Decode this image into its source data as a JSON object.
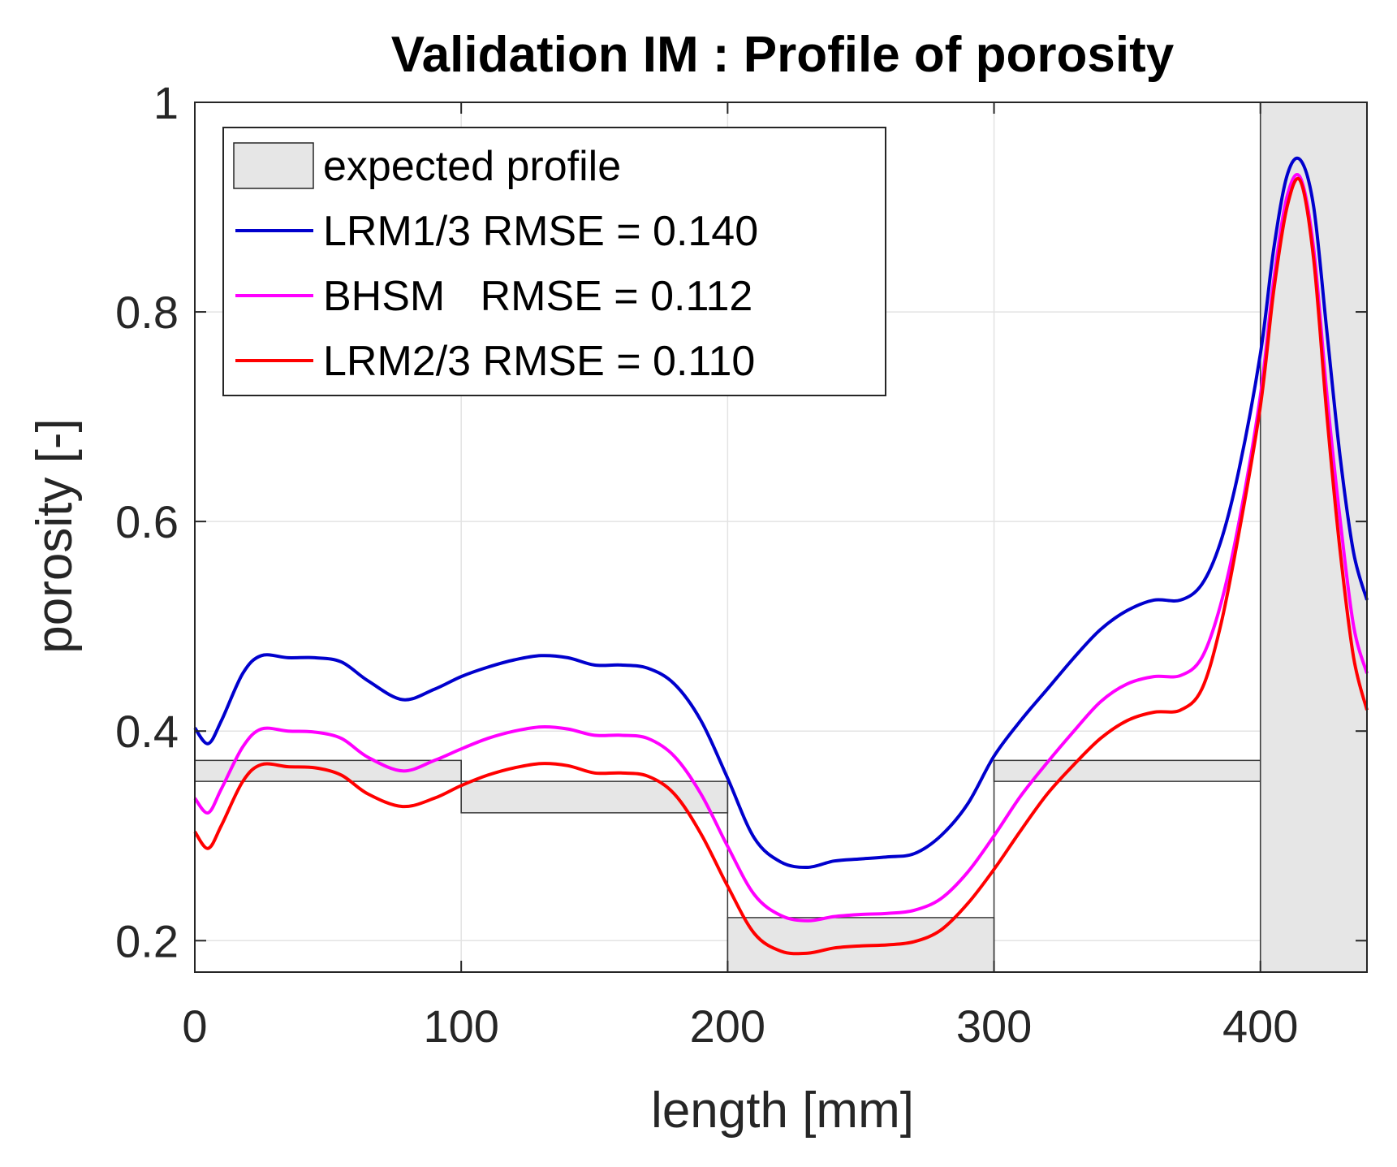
{
  "chart_data": {
    "type": "line",
    "title": "Validation IM : Profile of porosity",
    "xlabel": "length [mm]",
    "ylabel": "porosity [-]",
    "xlim": [
      0,
      440
    ],
    "ylim": [
      0.17,
      1.0
    ],
    "xticks": [
      0,
      100,
      200,
      300,
      400
    ],
    "yticks": [
      0.2,
      0.4,
      0.6,
      0.8,
      1
    ],
    "xtick_labels": [
      "0",
      "100",
      "200",
      "300",
      "400"
    ],
    "ytick_labels": [
      "0.2",
      "0.4",
      "0.6",
      "0.8",
      "1"
    ],
    "grid": true,
    "legend_position": "top-left",
    "expected_profile": {
      "label": "expected profile",
      "color": "#e6e6e6",
      "segments": [
        {
          "x": [
            0,
            100
          ],
          "low": 0.352,
          "high": 0.372
        },
        {
          "x": [
            100,
            200
          ],
          "low": 0.322,
          "high": 0.352
        },
        {
          "x": [
            200,
            300
          ],
          "low": 0.17,
          "high": 0.222
        },
        {
          "x": [
            300,
            400
          ],
          "low": 0.352,
          "high": 0.372
        },
        {
          "x": [
            400,
            440
          ],
          "low": 0.17,
          "high": 1.0
        }
      ]
    },
    "series": [
      {
        "name": "LRM1/3 RMSE = 0.140",
        "color": "#0000cd",
        "x": [
          0,
          5,
          10,
          18,
          25,
          35,
          45,
          55,
          65,
          78,
          90,
          100,
          110,
          120,
          130,
          140,
          150,
          160,
          170,
          180,
          190,
          200,
          210,
          220,
          230,
          240,
          250,
          260,
          270,
          280,
          290,
          300,
          310,
          320,
          330,
          340,
          350,
          360,
          370,
          378,
          385,
          392,
          400,
          405,
          410,
          415,
          420,
          425,
          430,
          435,
          440
        ],
        "y": [
          0.403,
          0.388,
          0.41,
          0.455,
          0.472,
          0.47,
          0.47,
          0.466,
          0.448,
          0.43,
          0.44,
          0.452,
          0.461,
          0.468,
          0.472,
          0.47,
          0.463,
          0.463,
          0.46,
          0.445,
          0.41,
          0.355,
          0.298,
          0.275,
          0.27,
          0.276,
          0.278,
          0.28,
          0.283,
          0.3,
          0.33,
          0.376,
          0.41,
          0.44,
          0.47,
          0.497,
          0.515,
          0.525,
          0.525,
          0.54,
          0.58,
          0.65,
          0.76,
          0.86,
          0.93,
          0.945,
          0.9,
          0.78,
          0.66,
          0.57,
          0.525
        ]
      },
      {
        "name": "BHSM   RMSE = 0.112",
        "color": "#ff00ff",
        "x": [
          0,
          5,
          10,
          18,
          25,
          35,
          45,
          55,
          65,
          78,
          90,
          100,
          110,
          120,
          130,
          140,
          150,
          160,
          170,
          180,
          190,
          200,
          210,
          220,
          230,
          240,
          250,
          260,
          270,
          280,
          290,
          300,
          310,
          320,
          330,
          340,
          350,
          360,
          370,
          378,
          385,
          392,
          400,
          405,
          410,
          415,
          420,
          425,
          430,
          435,
          440
        ],
        "y": [
          0.336,
          0.322,
          0.345,
          0.385,
          0.402,
          0.4,
          0.399,
          0.393,
          0.375,
          0.362,
          0.372,
          0.383,
          0.393,
          0.4,
          0.404,
          0.402,
          0.396,
          0.396,
          0.393,
          0.376,
          0.34,
          0.29,
          0.244,
          0.224,
          0.219,
          0.223,
          0.225,
          0.226,
          0.229,
          0.24,
          0.265,
          0.3,
          0.338,
          0.37,
          0.4,
          0.428,
          0.445,
          0.452,
          0.453,
          0.47,
          0.52,
          0.6,
          0.72,
          0.83,
          0.91,
          0.928,
          0.86,
          0.72,
          0.6,
          0.5,
          0.455
        ]
      },
      {
        "name": "LRM2/3 RMSE = 0.110",
        "color": "#ff0000",
        "x": [
          0,
          5,
          10,
          18,
          25,
          35,
          45,
          55,
          65,
          78,
          90,
          100,
          110,
          120,
          130,
          140,
          150,
          160,
          170,
          180,
          190,
          200,
          210,
          220,
          230,
          240,
          250,
          260,
          270,
          280,
          290,
          300,
          310,
          320,
          330,
          340,
          350,
          360,
          370,
          378,
          385,
          392,
          400,
          405,
          410,
          415,
          420,
          425,
          430,
          435,
          440
        ],
        "y": [
          0.304,
          0.288,
          0.31,
          0.352,
          0.368,
          0.366,
          0.365,
          0.358,
          0.34,
          0.328,
          0.336,
          0.348,
          0.358,
          0.365,
          0.369,
          0.367,
          0.36,
          0.36,
          0.357,
          0.34,
          0.302,
          0.252,
          0.207,
          0.19,
          0.188,
          0.193,
          0.195,
          0.196,
          0.199,
          0.21,
          0.235,
          0.268,
          0.305,
          0.34,
          0.368,
          0.393,
          0.41,
          0.418,
          0.42,
          0.44,
          0.5,
          0.59,
          0.71,
          0.82,
          0.9,
          0.925,
          0.85,
          0.7,
          0.57,
          0.47,
          0.42
        ]
      }
    ]
  }
}
